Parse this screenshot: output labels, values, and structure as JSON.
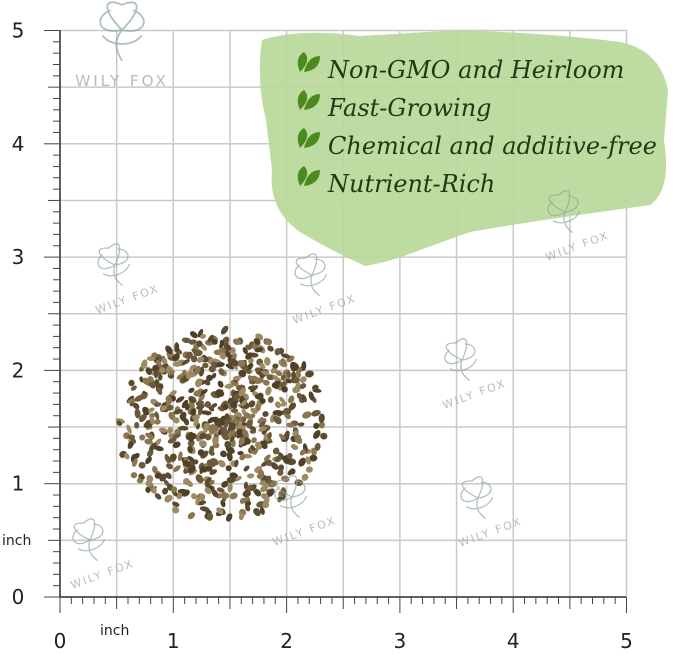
{
  "brand": "WILY FOX",
  "features": [
    "Non-GMO and Heirloom",
    "Fast-Growing",
    "Chemical and additive-free",
    "Nutrient-Rich"
  ],
  "ruler": {
    "x_labels": [
      "0",
      "1",
      "2",
      "3",
      "4",
      "5"
    ],
    "y_labels": [
      "0",
      "1",
      "2",
      "3",
      "4",
      "5"
    ],
    "x_unit": "inch",
    "y_unit": "inch"
  }
}
